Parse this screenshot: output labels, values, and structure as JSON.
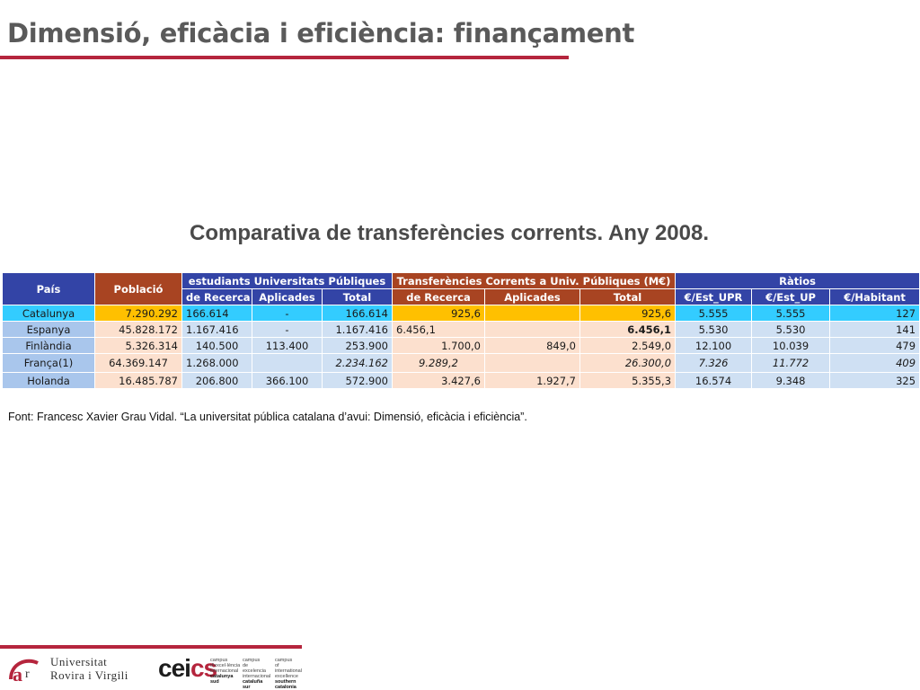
{
  "title": "Dimensió, eficàcia i eficiència: finançament",
  "caption": "Comparativa de transferències corrents. Any 2008.",
  "table": {
    "headers": {
      "pais": "País",
      "poblacio": "Població",
      "group_students": "estudiants Universitats Públiques",
      "group_transfers": "Transferències Corrents a Univ. Públiques (M€)",
      "group_ratios": "Ràtios",
      "sub": [
        "de Recerca",
        "Aplicades",
        "Total",
        "de Recerca",
        "Aplicades",
        "Total",
        "€/Est_UPR",
        "€/Est_UP",
        "€/Habitant"
      ]
    },
    "rows": [
      {
        "pais": "Catalunya",
        "poblacio": "7.290.292",
        "est_recerca": "166.614",
        "est_aplicades": "-",
        "est_total": "166.614",
        "tr_recerca": "925,6",
        "tr_aplicades": "",
        "tr_total": "925,6",
        "r_upr": "5.555",
        "r_up": "5.555",
        "r_hab": "127"
      },
      {
        "pais": "Espanya",
        "poblacio": "45.828.172",
        "est_recerca": "1.167.416",
        "est_aplicades": "-",
        "est_total": "1.167.416",
        "tr_recerca": "6.456,1",
        "tr_aplicades": "",
        "tr_total": "6.456,1",
        "r_upr": "5.530",
        "r_up": "5.530",
        "r_hab": "141"
      },
      {
        "pais": "Finlàndia",
        "poblacio": "5.326.314",
        "est_recerca": "140.500",
        "est_aplicades": "113.400",
        "est_total": "253.900",
        "tr_recerca": "1.700,0",
        "tr_aplicades": "849,0",
        "tr_total": "2.549,0",
        "r_upr": "12.100",
        "r_up": "10.039",
        "r_hab": "479"
      },
      {
        "pais": "França(1)",
        "poblacio": "64.369.147",
        "est_recerca": "1.268.000",
        "est_aplicades": "",
        "est_total": "2.234.162",
        "tr_recerca": "9.289,2",
        "tr_aplicades": "",
        "tr_total": "26.300,0",
        "r_upr": "7.326",
        "r_up": "11.772",
        "r_hab": "409"
      },
      {
        "pais": "Holanda",
        "poblacio": "16.485.787",
        "est_recerca": "206.800",
        "est_aplicades": "366.100",
        "est_total": "572.900",
        "tr_recerca": "3.427,6",
        "tr_aplicades": "1.927,7",
        "tr_total": "5.355,3",
        "r_upr": "16.574",
        "r_up": "9.348",
        "r_hab": "325"
      }
    ]
  },
  "source": "Font: Francesc Xavier Grau Vidal. “La universitat pública catalana d’avui: Dimensió, eficàcia i eficiència”.",
  "footer": {
    "urv_line1": "Universitat",
    "urv_line2": "Rovira i Virgili",
    "cei_logo": "cei",
    "cei_logo_end": "cs",
    "cei_texts": [
      {
        "line1": "campus",
        "line2": "d'excel·lència",
        "line3": "internacional",
        "line4": "catalunya sud"
      },
      {
        "line1": "campus",
        "line2": "de excelencia",
        "line3": "internacional",
        "line4": "cataluña sur"
      },
      {
        "line1": "campus",
        "line2": "of international",
        "line3": "excellence",
        "line4": "southern catalonia"
      }
    ]
  },
  "colors": {
    "accent_rule": "#b5253d",
    "header_blue": "#3344a6",
    "header_brown": "#a84422",
    "highlight_cyan": "#33ccff",
    "highlight_gold": "#ffc000"
  }
}
